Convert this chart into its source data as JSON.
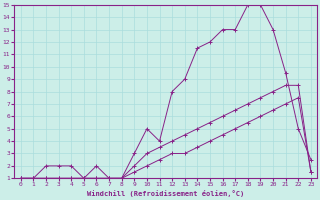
{
  "xlabel": "Windchill (Refroidissement éolien,°C)",
  "background_color": "#cceee8",
  "grid_color": "#aadddd",
  "line_color": "#882288",
  "xlim": [
    -0.5,
    23.5
  ],
  "ylim": [
    1,
    15
  ],
  "xticks": [
    0,
    1,
    2,
    3,
    4,
    5,
    6,
    7,
    8,
    9,
    10,
    11,
    12,
    13,
    14,
    15,
    16,
    17,
    18,
    19,
    20,
    21,
    22,
    23
  ],
  "yticks": [
    1,
    2,
    3,
    4,
    5,
    6,
    7,
    8,
    9,
    10,
    11,
    12,
    13,
    14,
    15
  ],
  "line1_x": [
    0,
    1,
    2,
    3,
    4,
    5,
    6,
    7,
    8,
    9,
    10,
    11,
    12,
    13,
    14,
    15,
    16,
    17,
    18,
    19,
    20,
    21,
    22,
    23
  ],
  "line1_y": [
    1,
    1,
    2,
    2,
    2,
    1,
    2,
    1,
    1,
    3,
    5,
    4,
    8,
    9,
    11.5,
    12,
    13,
    13,
    15,
    15,
    13,
    9.5,
    5,
    2.5
  ],
  "line2_x": [
    0,
    1,
    2,
    3,
    4,
    5,
    6,
    7,
    8,
    9,
    10,
    11,
    12,
    13,
    14,
    15,
    16,
    17,
    18,
    19,
    20,
    21,
    22,
    23
  ],
  "line2_y": [
    1,
    1,
    1,
    1,
    1,
    1,
    1,
    1,
    1,
    2,
    3,
    3.5,
    4,
    4.5,
    5,
    5.5,
    6,
    6.5,
    7,
    7.5,
    8,
    8.5,
    8.5,
    1.5
  ],
  "line3_x": [
    0,
    1,
    2,
    3,
    4,
    5,
    6,
    7,
    8,
    9,
    10,
    11,
    12,
    13,
    14,
    15,
    16,
    17,
    18,
    19,
    20,
    21,
    22,
    23
  ],
  "line3_y": [
    1,
    1,
    1,
    1,
    1,
    1,
    1,
    1,
    1,
    1.5,
    2,
    2.5,
    3,
    3,
    3.5,
    4,
    4.5,
    5,
    5.5,
    6,
    6.5,
    7,
    7.5,
    1.5
  ]
}
